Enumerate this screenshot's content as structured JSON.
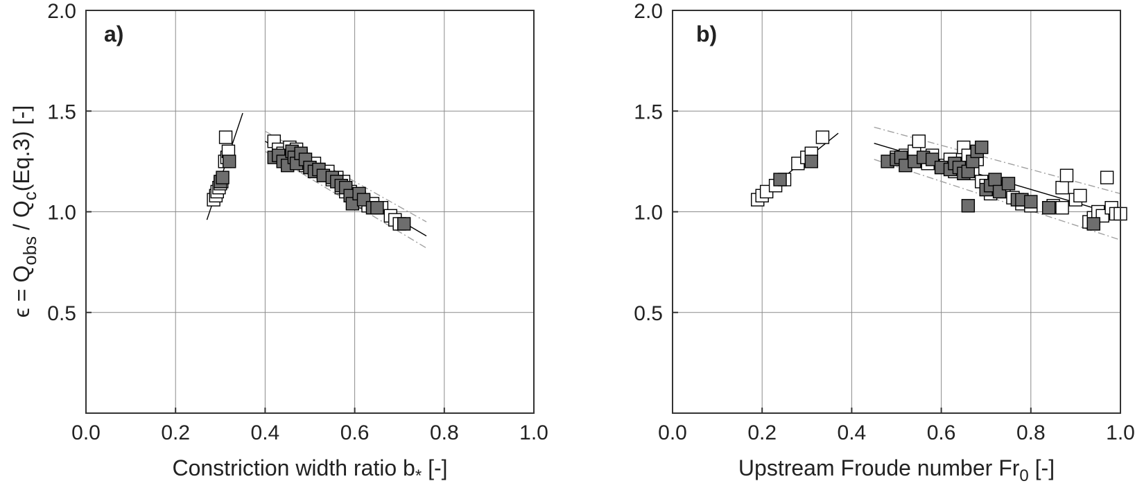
{
  "chart_data": [
    {
      "type": "scatter",
      "panel_label": "a)",
      "xlabel_main": "Constriction width ratio b",
      "xlabel_sub": "*",
      "xlabel_tail": " [-]",
      "ylabel": {
        "prefix": "ϵ = Q",
        "sub1": "obs",
        "mid": " / Q",
        "sub2": "c",
        "tail": "(Eq.3)  [-]"
      },
      "xlim": [
        0,
        1
      ],
      "ylim": [
        0,
        2
      ],
      "xticks": [
        0,
        0.2,
        0.4,
        0.6,
        0.8,
        1.0
      ],
      "xtick_labels": [
        "0.0",
        "0.2",
        "0.4",
        "0.6",
        "0.8",
        "1.0"
      ],
      "yticks": [
        0.5,
        1.0,
        1.5,
        2.0
      ],
      "ytick_labels": [
        "0.5",
        "1.0",
        "1.5",
        "2.0"
      ],
      "grid": true,
      "series": [
        {
          "marker": "open-square",
          "points": [
            [
              0.285,
              1.06
            ],
            [
              0.29,
              1.08
            ],
            [
              0.293,
              1.1
            ],
            [
              0.297,
              1.12
            ],
            [
              0.3,
              1.14
            ],
            [
              0.303,
              1.15
            ],
            [
              0.31,
              1.25
            ],
            [
              0.315,
              1.27
            ],
            [
              0.318,
              1.3
            ],
            [
              0.312,
              1.37
            ],
            [
              0.42,
              1.35
            ],
            [
              0.43,
              1.31
            ],
            [
              0.44,
              1.29
            ],
            [
              0.45,
              1.27
            ],
            [
              0.455,
              1.32
            ],
            [
              0.46,
              1.3
            ],
            [
              0.47,
              1.31
            ],
            [
              0.48,
              1.28
            ],
            [
              0.485,
              1.26
            ],
            [
              0.49,
              1.23
            ],
            [
              0.5,
              1.22
            ],
            [
              0.51,
              1.24
            ],
            [
              0.52,
              1.21
            ],
            [
              0.53,
              1.19
            ],
            [
              0.54,
              1.2
            ],
            [
              0.55,
              1.16
            ],
            [
              0.56,
              1.17
            ],
            [
              0.57,
              1.12
            ],
            [
              0.575,
              1.15
            ],
            [
              0.58,
              1.1
            ],
            [
              0.59,
              1.1
            ],
            [
              0.6,
              1.08
            ],
            [
              0.61,
              1.07
            ],
            [
              0.62,
              1.05
            ],
            [
              0.63,
              1.03
            ],
            [
              0.64,
              1.04
            ],
            [
              0.66,
              1.02
            ],
            [
              0.68,
              0.98
            ],
            [
              0.69,
              0.96
            ],
            [
              0.7,
              0.94
            ]
          ]
        },
        {
          "marker": "filled-square",
          "points": [
            [
              0.3,
              1.15
            ],
            [
              0.305,
              1.17
            ],
            [
              0.32,
              1.25
            ],
            [
              0.42,
              1.27
            ],
            [
              0.43,
              1.28
            ],
            [
              0.44,
              1.25
            ],
            [
              0.45,
              1.23
            ],
            [
              0.46,
              1.3
            ],
            [
              0.465,
              1.27
            ],
            [
              0.47,
              1.24
            ],
            [
              0.48,
              1.29
            ],
            [
              0.49,
              1.26
            ],
            [
              0.5,
              1.22
            ],
            [
              0.51,
              1.2
            ],
            [
              0.52,
              1.21
            ],
            [
              0.53,
              1.18
            ],
            [
              0.55,
              1.17
            ],
            [
              0.56,
              1.15
            ],
            [
              0.57,
              1.13
            ],
            [
              0.58,
              1.12
            ],
            [
              0.59,
              1.08
            ],
            [
              0.595,
              1.04
            ],
            [
              0.61,
              1.09
            ],
            [
              0.62,
              1.06
            ],
            [
              0.64,
              1.02
            ],
            [
              0.65,
              1.02
            ],
            [
              0.71,
              0.94
            ]
          ]
        }
      ],
      "fit_lines": [
        {
          "x": [
            0.27,
            0.35
          ],
          "y": [
            0.96,
            1.49
          ]
        },
        {
          "x": [
            0.4,
            0.76
          ],
          "y": [
            1.35,
            0.88
          ]
        }
      ],
      "band_lines": [
        {
          "x": [
            0.4,
            0.76
          ],
          "y": [
            1.4,
            0.95
          ]
        },
        {
          "x": [
            0.4,
            0.76
          ],
          "y": [
            1.3,
            0.82
          ]
        }
      ]
    },
    {
      "type": "scatter",
      "panel_label": "b)",
      "xlabel_main": "Upstream Froude number Fr",
      "xlabel_sub": "0",
      "xlabel_tail": " [-]",
      "xlim": [
        0,
        1
      ],
      "ylim": [
        0,
        2
      ],
      "xticks": [
        0,
        0.2,
        0.4,
        0.6,
        0.8,
        1.0
      ],
      "xtick_labels": [
        "0.0",
        "0.2",
        "0.4",
        "0.6",
        "0.8",
        "1.0"
      ],
      "yticks": [
        0.5,
        1.0,
        1.5,
        2.0
      ],
      "ytick_labels": [
        "0.5",
        "1.0",
        "1.5",
        "2.0"
      ],
      "grid": true,
      "series": [
        {
          "marker": "open-square",
          "points": [
            [
              0.19,
              1.06
            ],
            [
              0.2,
              1.08
            ],
            [
              0.21,
              1.1
            ],
            [
              0.23,
              1.13
            ],
            [
              0.25,
              1.16
            ],
            [
              0.28,
              1.24
            ],
            [
              0.3,
              1.27
            ],
            [
              0.31,
              1.29
            ],
            [
              0.335,
              1.37
            ],
            [
              0.5,
              1.27
            ],
            [
              0.52,
              1.28
            ],
            [
              0.53,
              1.27
            ],
            [
              0.54,
              1.3
            ],
            [
              0.55,
              1.35
            ],
            [
              0.56,
              1.25
            ],
            [
              0.57,
              1.24
            ],
            [
              0.58,
              1.28
            ],
            [
              0.6,
              1.22
            ],
            [
              0.61,
              1.23
            ],
            [
              0.62,
              1.26
            ],
            [
              0.63,
              1.2
            ],
            [
              0.64,
              1.24
            ],
            [
              0.65,
              1.32
            ],
            [
              0.66,
              1.28
            ],
            [
              0.67,
              1.19
            ],
            [
              0.68,
              1.26
            ],
            [
              0.69,
              1.15
            ],
            [
              0.7,
              1.13
            ],
            [
              0.71,
              1.09
            ],
            [
              0.72,
              1.12
            ],
            [
              0.74,
              1.1
            ],
            [
              0.76,
              1.07
            ],
            [
              0.78,
              1.04
            ],
            [
              0.8,
              1.03
            ],
            [
              0.85,
              1.03
            ],
            [
              0.87,
              1.02
            ],
            [
              0.87,
              1.12
            ],
            [
              0.88,
              1.18
            ],
            [
              0.9,
              1.06
            ],
            [
              0.91,
              1.08
            ],
            [
              0.93,
              0.95
            ],
            [
              0.94,
              0.97
            ],
            [
              0.95,
              1.0
            ],
            [
              0.96,
              0.98
            ],
            [
              0.97,
              1.17
            ],
            [
              0.98,
              1.02
            ],
            [
              0.99,
              0.99
            ],
            [
              1.0,
              0.99
            ]
          ]
        },
        {
          "marker": "filled-square",
          "points": [
            [
              0.24,
              1.16
            ],
            [
              0.31,
              1.25
            ],
            [
              0.48,
              1.25
            ],
            [
              0.5,
              1.26
            ],
            [
              0.51,
              1.27
            ],
            [
              0.52,
              1.23
            ],
            [
              0.54,
              1.25
            ],
            [
              0.56,
              1.27
            ],
            [
              0.58,
              1.26
            ],
            [
              0.6,
              1.22
            ],
            [
              0.62,
              1.21
            ],
            [
              0.63,
              1.24
            ],
            [
              0.64,
              1.22
            ],
            [
              0.65,
              1.19
            ],
            [
              0.66,
              1.2
            ],
            [
              0.66,
              1.03
            ],
            [
              0.67,
              1.25
            ],
            [
              0.68,
              1.3
            ],
            [
              0.69,
              1.32
            ],
            [
              0.7,
              1.11
            ],
            [
              0.71,
              1.13
            ],
            [
              0.72,
              1.16
            ],
            [
              0.73,
              1.1
            ],
            [
              0.75,
              1.14
            ],
            [
              0.77,
              1.06
            ],
            [
              0.78,
              1.06
            ],
            [
              0.8,
              1.05
            ],
            [
              0.84,
              1.02
            ],
            [
              0.94,
              0.94
            ]
          ]
        }
      ],
      "fit_lines": [
        {
          "x": [
            0.18,
            0.37
          ],
          "y": [
            1.05,
            1.39
          ]
        },
        {
          "x": [
            0.45,
            1.0
          ],
          "y": [
            1.34,
            0.98
          ]
        }
      ],
      "band_lines": [
        {
          "x": [
            0.45,
            1.0
          ],
          "y": [
            1.42,
            1.09
          ]
        },
        {
          "x": [
            0.45,
            1.0
          ],
          "y": [
            1.26,
            0.86
          ]
        }
      ]
    }
  ]
}
